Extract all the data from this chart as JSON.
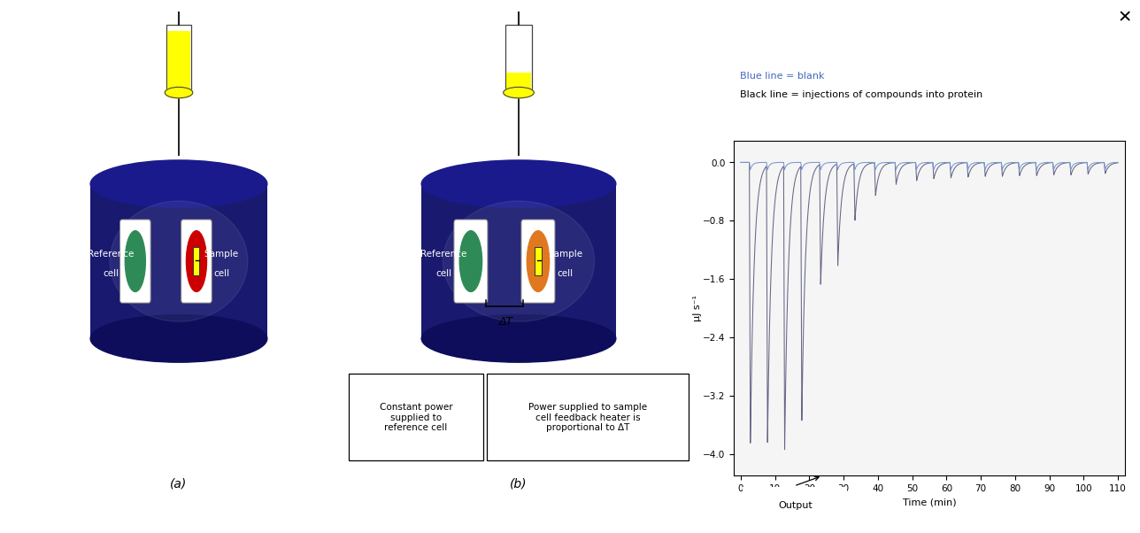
{
  "legend_blue": "Blue line = blank",
  "legend_black": "Black line = injections of compounds into protein",
  "ylabel": "μJ s⁻¹",
  "xlabel": "Time (min)",
  "xlim": [
    -2,
    112
  ],
  "ylim": [
    -4.3,
    0.3
  ],
  "yticks": [
    0.0,
    -0.8,
    -1.6,
    -2.4,
    -3.2,
    -4.0
  ],
  "xticks": [
    0,
    10,
    20,
    30,
    40,
    50,
    60,
    70,
    80,
    90,
    100,
    110
  ],
  "bg_color": "#ffffff",
  "navy": "#191970",
  "navy_top": "#1a1a8c",
  "navy_bot": "#0d0d5c",
  "green": "#2E8B57",
  "red": "#CC0000",
  "orange": "#E07820",
  "yellow": "#FFFF00",
  "blue_disc": "#1565C0",
  "label_a": "(a)",
  "label_b": "(b)",
  "ref_label_1": "Reference",
  "ref_label_2": "cell",
  "sample_label_1": "Sample",
  "sample_label_2": "cell",
  "box1_text": "Constant power\nsupplied to\nreference cell",
  "box2_text": "Power supplied to sample\ncell feedback heater is\nproportional to ΔT",
  "output_text": "Output",
  "delta_t": "ΔT"
}
